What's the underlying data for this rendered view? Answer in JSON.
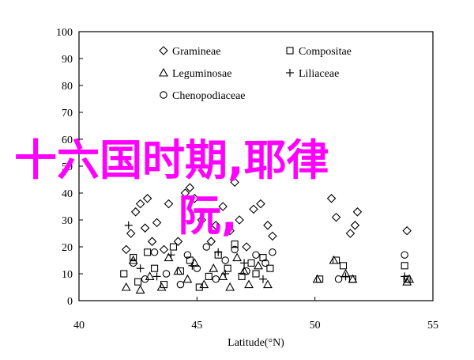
{
  "chart_data": {
    "type": "scatter",
    "title": "",
    "xlabel": "Latitude(°N)",
    "ylabel": "",
    "xlim": [
      40,
      55
    ],
    "ylim": [
      0,
      100
    ],
    "xticks": [
      "40",
      "45",
      "50",
      "55"
    ],
    "yticks": [
      "0",
      "10",
      "20",
      "30",
      "40",
      "50",
      "60",
      "70",
      "80",
      "90",
      "100"
    ],
    "grid": false,
    "legend_position": "top-center",
    "series": [
      {
        "name": "Gramineae",
        "marker": "diamond",
        "points": [
          [
            42.0,
            19
          ],
          [
            42.2,
            25
          ],
          [
            42.4,
            33
          ],
          [
            42.6,
            36
          ],
          [
            42.9,
            38
          ],
          [
            42.8,
            27
          ],
          [
            43.1,
            22
          ],
          [
            43.3,
            29
          ],
          [
            43.6,
            19
          ],
          [
            43.8,
            36
          ],
          [
            44.2,
            22
          ],
          [
            44.5,
            40
          ],
          [
            44.7,
            42
          ],
          [
            44.9,
            38
          ],
          [
            45.2,
            30
          ],
          [
            45.6,
            22
          ],
          [
            45.8,
            28
          ],
          [
            46.1,
            35
          ],
          [
            46.4,
            26
          ],
          [
            46.6,
            44
          ],
          [
            46.8,
            30
          ],
          [
            47.1,
            20
          ],
          [
            47.4,
            34
          ],
          [
            47.7,
            36
          ],
          [
            48.0,
            28
          ],
          [
            48.2,
            24
          ],
          [
            50.7,
            38
          ],
          [
            50.9,
            31
          ],
          [
            51.5,
            25
          ],
          [
            51.7,
            28
          ],
          [
            51.8,
            33
          ],
          [
            53.9,
            26
          ]
        ]
      },
      {
        "name": "Compositae",
        "marker": "square",
        "points": [
          [
            41.9,
            10
          ],
          [
            42.3,
            16
          ],
          [
            42.5,
            7
          ],
          [
            42.9,
            18
          ],
          [
            43.2,
            12
          ],
          [
            43.6,
            6
          ],
          [
            44.0,
            20
          ],
          [
            44.3,
            11
          ],
          [
            44.7,
            15
          ],
          [
            45.1,
            5
          ],
          [
            45.5,
            9
          ],
          [
            45.9,
            17
          ],
          [
            46.3,
            12
          ],
          [
            46.6,
            21
          ],
          [
            46.9,
            9
          ],
          [
            47.3,
            14
          ],
          [
            47.5,
            10
          ],
          [
            47.8,
            16
          ],
          [
            48.1,
            12
          ],
          [
            50.2,
            8
          ],
          [
            50.9,
            15
          ],
          [
            51.2,
            13
          ],
          [
            51.6,
            8
          ],
          [
            53.8,
            13
          ],
          [
            53.9,
            8
          ]
        ]
      },
      {
        "name": "Leguminosae",
        "marker": "triangle",
        "points": [
          [
            42.0,
            5
          ],
          [
            42.3,
            15
          ],
          [
            42.6,
            4
          ],
          [
            43.0,
            9
          ],
          [
            43.5,
            5
          ],
          [
            43.8,
            16
          ],
          [
            44.2,
            11
          ],
          [
            44.6,
            8
          ],
          [
            44.9,
            14
          ],
          [
            45.3,
            6
          ],
          [
            45.7,
            12
          ],
          [
            46.1,
            9
          ],
          [
            46.4,
            5
          ],
          [
            46.7,
            16
          ],
          [
            47.0,
            11
          ],
          [
            47.2,
            6
          ],
          [
            47.6,
            13
          ],
          [
            48.0,
            6
          ],
          [
            50.1,
            8
          ],
          [
            50.8,
            15
          ],
          [
            51.3,
            10
          ],
          [
            51.6,
            8
          ],
          [
            53.9,
            7
          ],
          [
            54.0,
            8
          ]
        ]
      },
      {
        "name": "Liliaceae",
        "marker": "plus",
        "points": [
          [
            42.1,
            28
          ],
          [
            42.6,
            12
          ],
          [
            43.3,
            9
          ],
          [
            43.9,
            17
          ],
          [
            44.8,
            13
          ],
          [
            45.9,
            18
          ],
          [
            46.2,
            10
          ],
          [
            47.0,
            14
          ],
          [
            47.8,
            8
          ],
          [
            51.3,
            9
          ],
          [
            53.8,
            9
          ]
        ]
      },
      {
        "name": "Chenopodiaceae",
        "marker": "circle",
        "points": [
          [
            42.3,
            14
          ],
          [
            42.8,
            8
          ],
          [
            43.2,
            18
          ],
          [
            43.7,
            10
          ],
          [
            44.3,
            6
          ],
          [
            44.6,
            17
          ],
          [
            45.0,
            12
          ],
          [
            45.4,
            20
          ],
          [
            45.8,
            8
          ],
          [
            46.2,
            15
          ],
          [
            46.6,
            19
          ],
          [
            47.1,
            11
          ],
          [
            47.5,
            17
          ],
          [
            47.9,
            14
          ],
          [
            48.2,
            18
          ],
          [
            51.0,
            8
          ],
          [
            53.8,
            17
          ]
        ]
      }
    ]
  },
  "overlay": {
    "line1": "十六国时期,耶律",
    "line2": "阮,"
  }
}
